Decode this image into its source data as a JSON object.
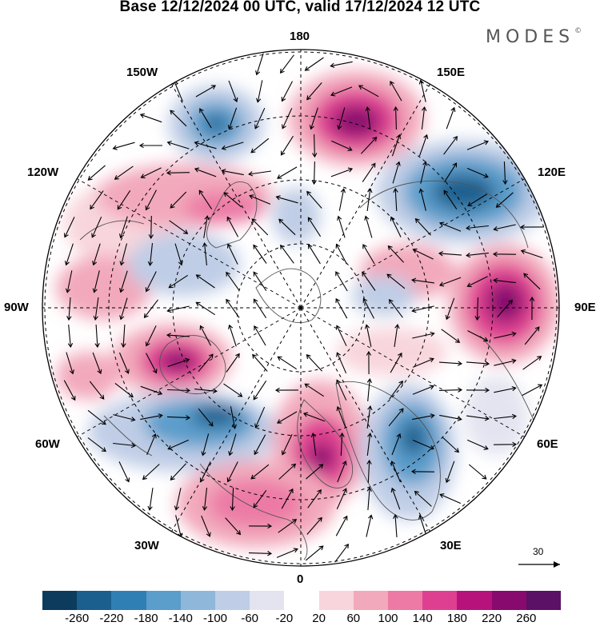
{
  "title": "Base 12/12/2024 00 UTC, valid 17/12/2024 12 UTC",
  "brand": "MODES",
  "brand_mark": "©",
  "longitude_labels": {
    "top": "180",
    "bottom": "0",
    "left": "90W",
    "right": "90E",
    "upper_left": "150W",
    "upper_right": "150E",
    "mid_upper_left": "120W",
    "mid_upper_right": "120E",
    "mid_lower_left": "60W",
    "mid_lower_right": "60E",
    "lower_left": "30W",
    "lower_right": "30E"
  },
  "reference_vector": {
    "label": "30"
  },
  "colorbar": {
    "colors": [
      "#0d3b5e",
      "#1a5f8e",
      "#2f7fb5",
      "#5b9dcb",
      "#8fb7da",
      "#bfcde6",
      "#e3e4f0",
      "#ffffff",
      "#f8d5dc",
      "#f2a9bc",
      "#ec7aa5",
      "#df3f91",
      "#b7127c",
      "#880a6e",
      "#5b1166"
    ],
    "ticks": [
      "-260",
      "-220",
      "-180",
      "-140",
      "-100",
      "-60",
      "-20",
      "20",
      "60",
      "100",
      "140",
      "180",
      "220",
      "260"
    ]
  },
  "anomaly_centers": [
    {
      "sign": "neg",
      "level": "strong",
      "region": "north-pacific-west"
    },
    {
      "sign": "pos",
      "level": "strong",
      "region": "bering"
    },
    {
      "sign": "neg",
      "level": "strong",
      "region": "east-siberia"
    },
    {
      "sign": "pos",
      "level": "strong",
      "region": "central-siberia"
    },
    {
      "sign": "pos",
      "level": "moderate",
      "region": "alaska-canada"
    },
    {
      "sign": "pos",
      "level": "strong",
      "region": "hudson-bay"
    },
    {
      "sign": "neg",
      "level": "strong",
      "region": "north-atlantic-west"
    },
    {
      "sign": "pos",
      "level": "strong",
      "region": "greenland-sea"
    },
    {
      "sign": "neg",
      "level": "strong",
      "region": "scandinavia-barents"
    },
    {
      "sign": "pos",
      "level": "moderate",
      "region": "north-atlantic-east"
    }
  ]
}
